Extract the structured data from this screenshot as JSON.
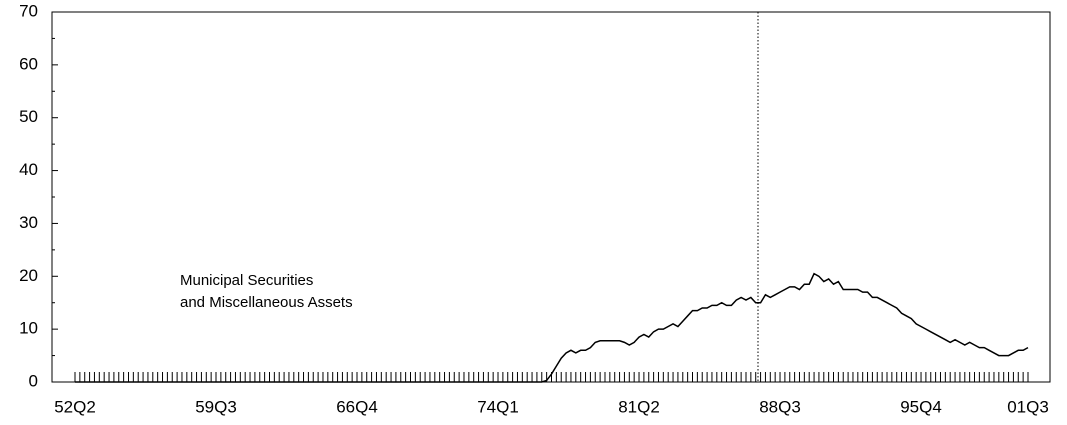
{
  "chart_data": {
    "type": "line",
    "annotation": [
      "Municipal Securities",
      "and Miscellaneous Assets"
    ],
    "categories": [
      "52Q2",
      null,
      null,
      null,
      null,
      null,
      null,
      null,
      null,
      null,
      null,
      null,
      null,
      null,
      null,
      null,
      null,
      null,
      null,
      null,
      null,
      null,
      null,
      null,
      null,
      null,
      null,
      null,
      null,
      "59Q3",
      null,
      null,
      null,
      null,
      null,
      null,
      null,
      null,
      null,
      null,
      null,
      null,
      null,
      null,
      null,
      null,
      null,
      null,
      null,
      null,
      null,
      null,
      null,
      null,
      null,
      null,
      null,
      null,
      "66Q4",
      null,
      null,
      null,
      null,
      null,
      null,
      null,
      null,
      null,
      null,
      null,
      null,
      null,
      null,
      null,
      null,
      null,
      null,
      null,
      null,
      null,
      null,
      null,
      null,
      null,
      null,
      null,
      null,
      "74Q1",
      null,
      null,
      null,
      null,
      null,
      null,
      null,
      null,
      null,
      null,
      null,
      null,
      null,
      null,
      null,
      null,
      null,
      null,
      null,
      null,
      null,
      null,
      null,
      null,
      null,
      null,
      null,
      null,
      "81Q2",
      null,
      null,
      null,
      null,
      null,
      null,
      null,
      null,
      null,
      null,
      null,
      null,
      null,
      null,
      null,
      null,
      null,
      null,
      null,
      null,
      null,
      null,
      null,
      null,
      null,
      null,
      null,
      null,
      "88Q3",
      null,
      null,
      null,
      null,
      null,
      null,
      null,
      null,
      null,
      null,
      null,
      null,
      null,
      null,
      null,
      null,
      null,
      null,
      null,
      null,
      null,
      null,
      null,
      null,
      null,
      null,
      null,
      null,
      "95Q4",
      null,
      null,
      null,
      null,
      null,
      null,
      null,
      null,
      null,
      null,
      null,
      null,
      null,
      null,
      null,
      null,
      null,
      null,
      null,
      null,
      null,
      "01Q3"
    ],
    "values": [
      0,
      0,
      0,
      0,
      0,
      0,
      0,
      0,
      0,
      0,
      0,
      0,
      0,
      0,
      0,
      0,
      0,
      0,
      0,
      0,
      0,
      0,
      0,
      0,
      0,
      0,
      0,
      0,
      0,
      0,
      0,
      0,
      0,
      0,
      0,
      0,
      0,
      0,
      0,
      0,
      0,
      0,
      0,
      0,
      0,
      0,
      0,
      0,
      0,
      0,
      0,
      0,
      0,
      0,
      0,
      0,
      0,
      0,
      0,
      0,
      0,
      0,
      0,
      0,
      0,
      0,
      0,
      0,
      0,
      0,
      0,
      0,
      0,
      0,
      0,
      0,
      0,
      0,
      0,
      0,
      0,
      0,
      0,
      0,
      0,
      0,
      0,
      0,
      0,
      0,
      0,
      0,
      0,
      0,
      0,
      0,
      0,
      0.3,
      1.5,
      3,
      4.5,
      5.5,
      6,
      5.5,
      6,
      6,
      6.5,
      7.5,
      7.8,
      7.8,
      7.8,
      7.8,
      7.8,
      7.5,
      7,
      7.5,
      8.5,
      9,
      8.5,
      9.5,
      10,
      10,
      10.5,
      11,
      10.5,
      11.5,
      12.5,
      13.5,
      13.5,
      14,
      14,
      14.5,
      14.5,
      15,
      14.5,
      14.5,
      15.5,
      16,
      15.5,
      16,
      15,
      15,
      16.5,
      16,
      16.5,
      17,
      17.5,
      18,
      18,
      17.5,
      18.5,
      18.5,
      20.5,
      20,
      19,
      19.5,
      18.5,
      19,
      17.5,
      17.5,
      17.5,
      17.5,
      17,
      17,
      16,
      16,
      15.5,
      15,
      14.5,
      14,
      13,
      12.5,
      12,
      11,
      10.5,
      10,
      9.5,
      9,
      8.5,
      8,
      7.5,
      8,
      7.5,
      7,
      7.5,
      7,
      6.5,
      6.5,
      6,
      5.5,
      5,
      5,
      5,
      5.5,
      6,
      6,
      6.5
    ],
    "color": "#000000",
    "ylim": [
      0,
      70
    ],
    "yticks": [
      0,
      10,
      20,
      30,
      40,
      50,
      60,
      70
    ]
  }
}
